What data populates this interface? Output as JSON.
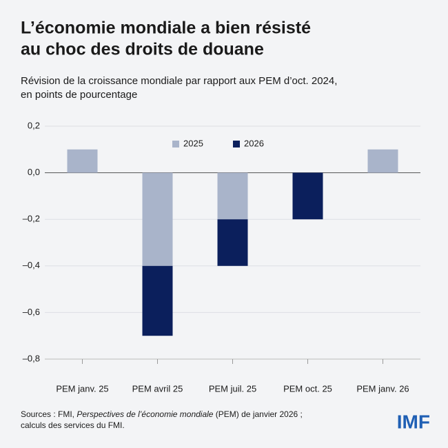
{
  "chart_data": {
    "type": "stacked-bar",
    "title": [
      "L’économie mondiale a bien résisté",
      "au choc des droits de douane"
    ],
    "subtitle": [
      "Révision de la croissance mondiale par rapport aux PEM d’oct. 2024,",
      "en points de pourcentage"
    ],
    "categories": [
      "PEM janv. 25",
      "PEM avril 25",
      "PEM juil. 25",
      "PEM oct. 25",
      "PEM janv. 26"
    ],
    "series": [
      {
        "name": "2025",
        "color": "#a9b4ca",
        "values": [
          0.1,
          -0.4,
          -0.2,
          0,
          0.1
        ]
      },
      {
        "name": "2026",
        "color": "#0b1f5c",
        "values": [
          0,
          -0.3,
          -0.2,
          -0.2,
          0
        ]
      }
    ],
    "ylim": [
      -0.8,
      0.2
    ],
    "yticks": [
      {
        "value": 0.2,
        "label": "0,2"
      },
      {
        "value": 0,
        "label": "0,0"
      },
      {
        "value": -0.2,
        "label": "–0,2"
      },
      {
        "value": -0.4,
        "label": "–0,4"
      },
      {
        "value": -0.6,
        "label": "–0,6"
      },
      {
        "value": -0.8,
        "label": "–0,8"
      }
    ],
    "grid": true,
    "legend": "top",
    "source": [
      "Sources : FMI, ",
      "Perspectives de l’économie mondiale",
      " (PEM) de janvier 2026 ;",
      "calculs des services du FMI."
    ],
    "logo": "IMF"
  }
}
